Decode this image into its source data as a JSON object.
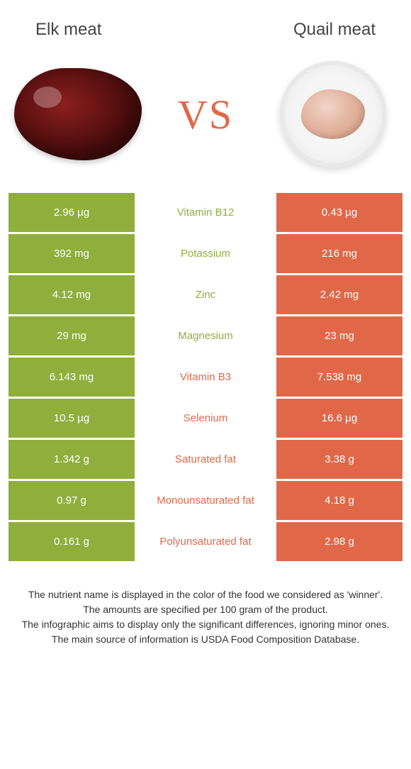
{
  "header": {
    "left_title": "Elk meat",
    "right_title": "Quail meat"
  },
  "vs_text": "vs",
  "colors": {
    "left_bg": "#8fae3c",
    "right_bg": "#e06848",
    "left_text": "#8fae3c",
    "right_text": "#e06848"
  },
  "rows": [
    {
      "left": "2.96 µg",
      "label": "Vitamin B12",
      "right": "0.43 µg",
      "winner": "left"
    },
    {
      "left": "392 mg",
      "label": "Potassium",
      "right": "216 mg",
      "winner": "left"
    },
    {
      "left": "4.12 mg",
      "label": "Zinc",
      "right": "2.42 mg",
      "winner": "left"
    },
    {
      "left": "29 mg",
      "label": "Magnesium",
      "right": "23 mg",
      "winner": "left"
    },
    {
      "left": "6.143 mg",
      "label": "Vitamin B3",
      "right": "7.538 mg",
      "winner": "right"
    },
    {
      "left": "10.5 µg",
      "label": "Selenium",
      "right": "16.6 µg",
      "winner": "right"
    },
    {
      "left": "1.342 g",
      "label": "Saturated fat",
      "right": "3.38 g",
      "winner": "right"
    },
    {
      "left": "0.97 g",
      "label": "Monounsaturated fat",
      "right": "4.18 g",
      "winner": "right"
    },
    {
      "left": "0.161 g",
      "label": "Polyunsaturated fat",
      "right": "2.98 g",
      "winner": "right"
    }
  ],
  "footer": {
    "line1": "The nutrient name is displayed in the color of the food we considered as 'winner'.",
    "line2": "The amounts are specified per 100 gram of the product.",
    "line3": "The infographic aims to display only the significant differences, ignoring minor ones.",
    "line4": "The main source of information is USDA Food Composition Database."
  }
}
